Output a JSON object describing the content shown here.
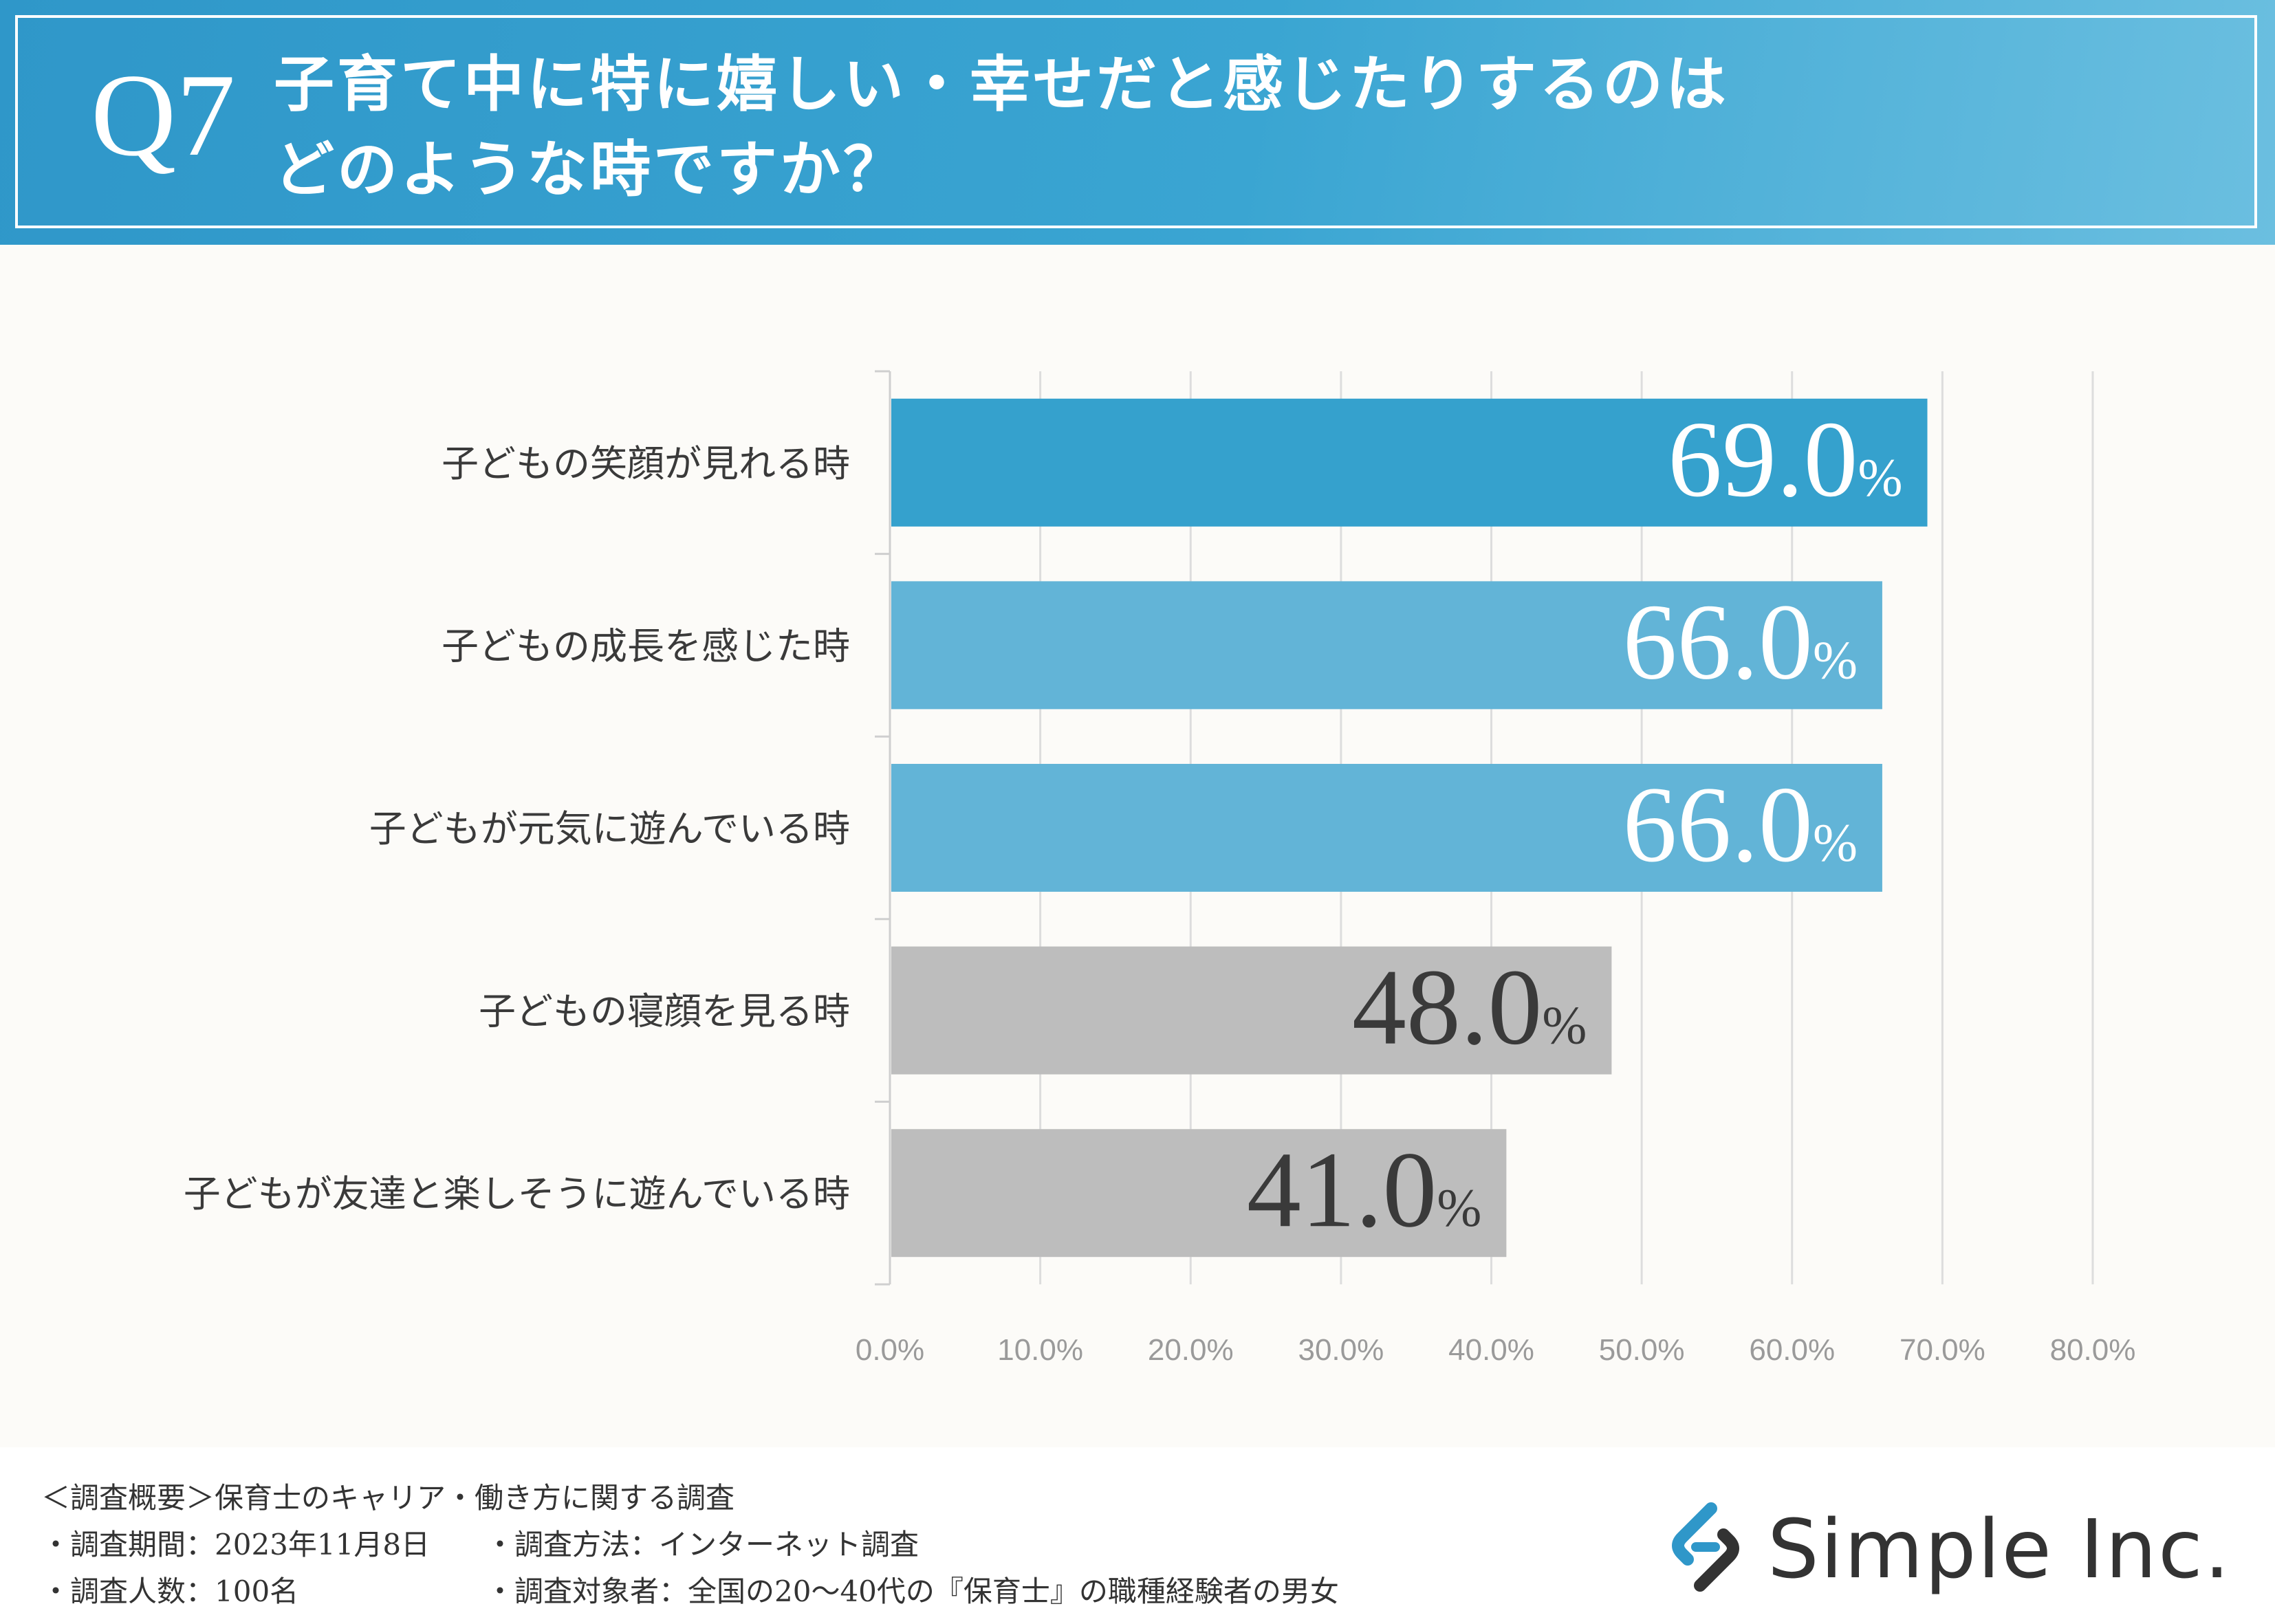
{
  "question": {
    "number": "Q7",
    "line1": "子育て中に特に嬉しい・幸せだと感じたりするのは",
    "line2": "どのような時ですか？"
  },
  "chart_data": {
    "type": "bar",
    "orientation": "horizontal",
    "categories": [
      "子どもの笑顔が見れる時",
      "子どもの成長を感じた時",
      "子どもが元気に遊んでいる時",
      "子どもの寝顔を見る時",
      "子どもが友達と楽しそうに遊んでいる時"
    ],
    "values": [
      69.0,
      66.0,
      66.0,
      48.0,
      41.0
    ],
    "value_labels": [
      "69.0",
      "66.0",
      "66.0",
      "48.0",
      "41.0"
    ],
    "unit": "%",
    "bar_colors": [
      "#35a1cd",
      "#62b4d7",
      "#62b4d7",
      "#bdbdbd",
      "#bdbdbd"
    ],
    "label_colors": [
      "#ffffff",
      "#ffffff",
      "#ffffff",
      "#3a3a3a",
      "#3a3a3a"
    ],
    "xlim": [
      0,
      80
    ],
    "x_ticks": [
      "0.0%",
      "10.0%",
      "20.0%",
      "30.0%",
      "40.0%",
      "50.0%",
      "60.0%",
      "70.0%",
      "80.0%"
    ],
    "grid": true
  },
  "survey": {
    "overview": "＜調査概要＞保育士のキャリア・働き方に関する調査",
    "period": "・調査期間：2023年11月8日",
    "method": "・調査方法：インターネット調査",
    "count": "・調査人数：100名",
    "target": "・調査対象者：全国の20～40代の『保育士』の職種経験者の男女"
  },
  "logo": {
    "text": "Simple Inc.",
    "icon": "chain-link-s-icon",
    "colors": {
      "blue": "#2f97c9",
      "dark": "#333333"
    }
  }
}
